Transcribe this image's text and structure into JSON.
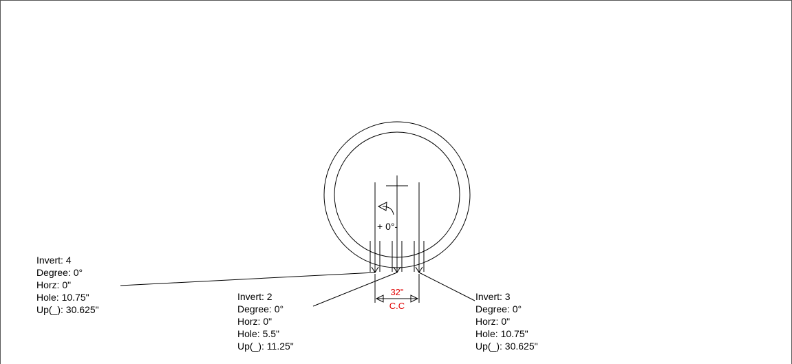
{
  "rotation_label": "+ 0°-",
  "dimension": {
    "value": "32\"",
    "label": "C.C"
  },
  "inverts": [
    {
      "lines": [
        "Invert: 4",
        "Degree: 0°",
        "Horz: 0\"",
        "Hole: 10.75\"",
        "Up(_): 30.625\""
      ]
    },
    {
      "lines": [
        "Invert: 2",
        "Degree: 0°",
        "Horz: 0\"",
        "Hole: 5.5\"",
        "Up(_): 11.25\""
      ]
    },
    {
      "lines": [
        "Invert: 3",
        "Degree: 0°",
        "Horz: 0\"",
        "Hole: 10.75\"",
        "Up(_): 30.625\""
      ]
    }
  ]
}
